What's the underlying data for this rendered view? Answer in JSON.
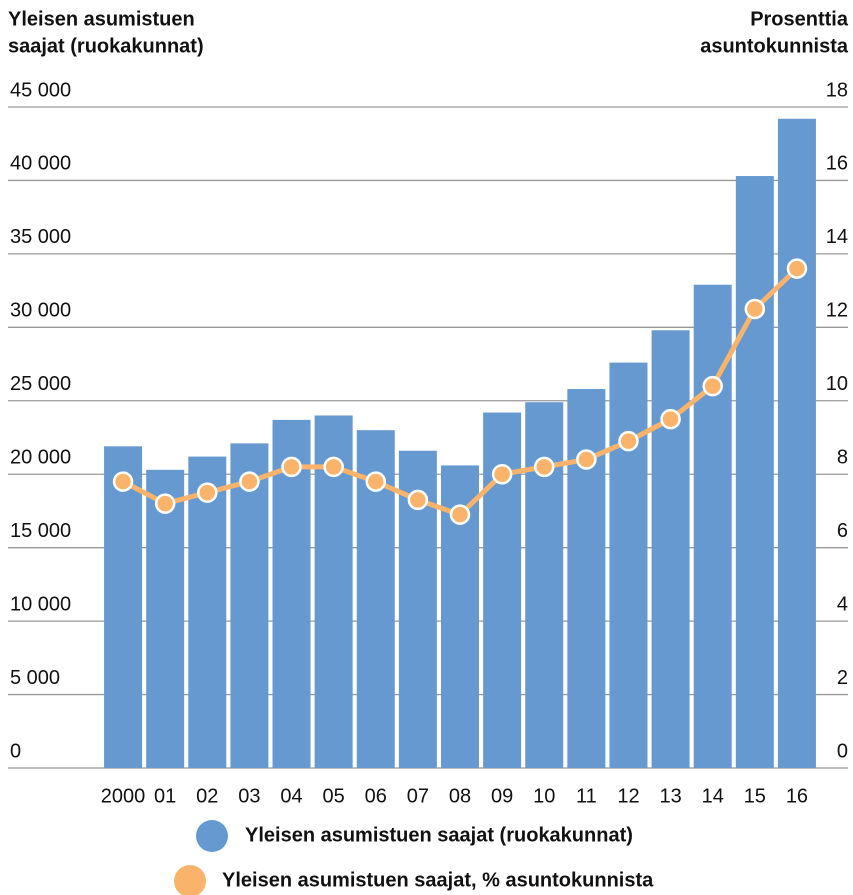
{
  "chart_data": {
    "type": "bar_line",
    "ylabel": [
      "Yleisen asumistuen",
      "saajat (ruokakunnat)"
    ],
    "y2label": [
      "Prosenttia",
      "asuntokunnista"
    ],
    "categories": [
      "2000",
      "01",
      "02",
      "03",
      "04",
      "05",
      "06",
      "07",
      "08",
      "09",
      "10",
      "11",
      "12",
      "13",
      "14",
      "15",
      "16"
    ],
    "series": [
      {
        "name": "Yleisen asumistuen saajat (ruokakunnat)",
        "color": "#6699d0",
        "type": "bar",
        "values": [
          21900,
          20300,
          21200,
          22100,
          23700,
          24000,
          23000,
          21600,
          20600,
          24200,
          24900,
          25800,
          27600,
          29800,
          32900,
          40300,
          44200
        ]
      },
      {
        "name": "Yleisen asumistuen saajat, % asuntokunnista",
        "color": "#f9b36b",
        "type": "line",
        "axis": "y2",
        "values": [
          7.8,
          7.2,
          7.5,
          7.8,
          8.2,
          8.2,
          7.8,
          7.3,
          6.9,
          8.0,
          8.2,
          8.4,
          8.9,
          9.5,
          10.4,
          12.5,
          13.6
        ]
      }
    ],
    "ylim": [
      0,
      45000
    ],
    "yticks": [
      {
        "value": 0,
        "label": "0"
      },
      {
        "value": 5000,
        "label": "5 000"
      },
      {
        "value": 10000,
        "label": "10 000"
      },
      {
        "value": 15000,
        "label": "15 000"
      },
      {
        "value": 20000,
        "label": "20 000"
      },
      {
        "value": 25000,
        "label": "25 000"
      },
      {
        "value": 30000,
        "label": "30 000"
      },
      {
        "value": 35000,
        "label": "35 000"
      },
      {
        "value": 40000,
        "label": "40 000"
      },
      {
        "value": 45000,
        "label": "45 000"
      }
    ],
    "y2lim": [
      0,
      18
    ],
    "y2ticks": [
      0,
      2,
      4,
      6,
      8,
      10,
      12,
      14,
      16,
      18
    ],
    "grid": true
  }
}
